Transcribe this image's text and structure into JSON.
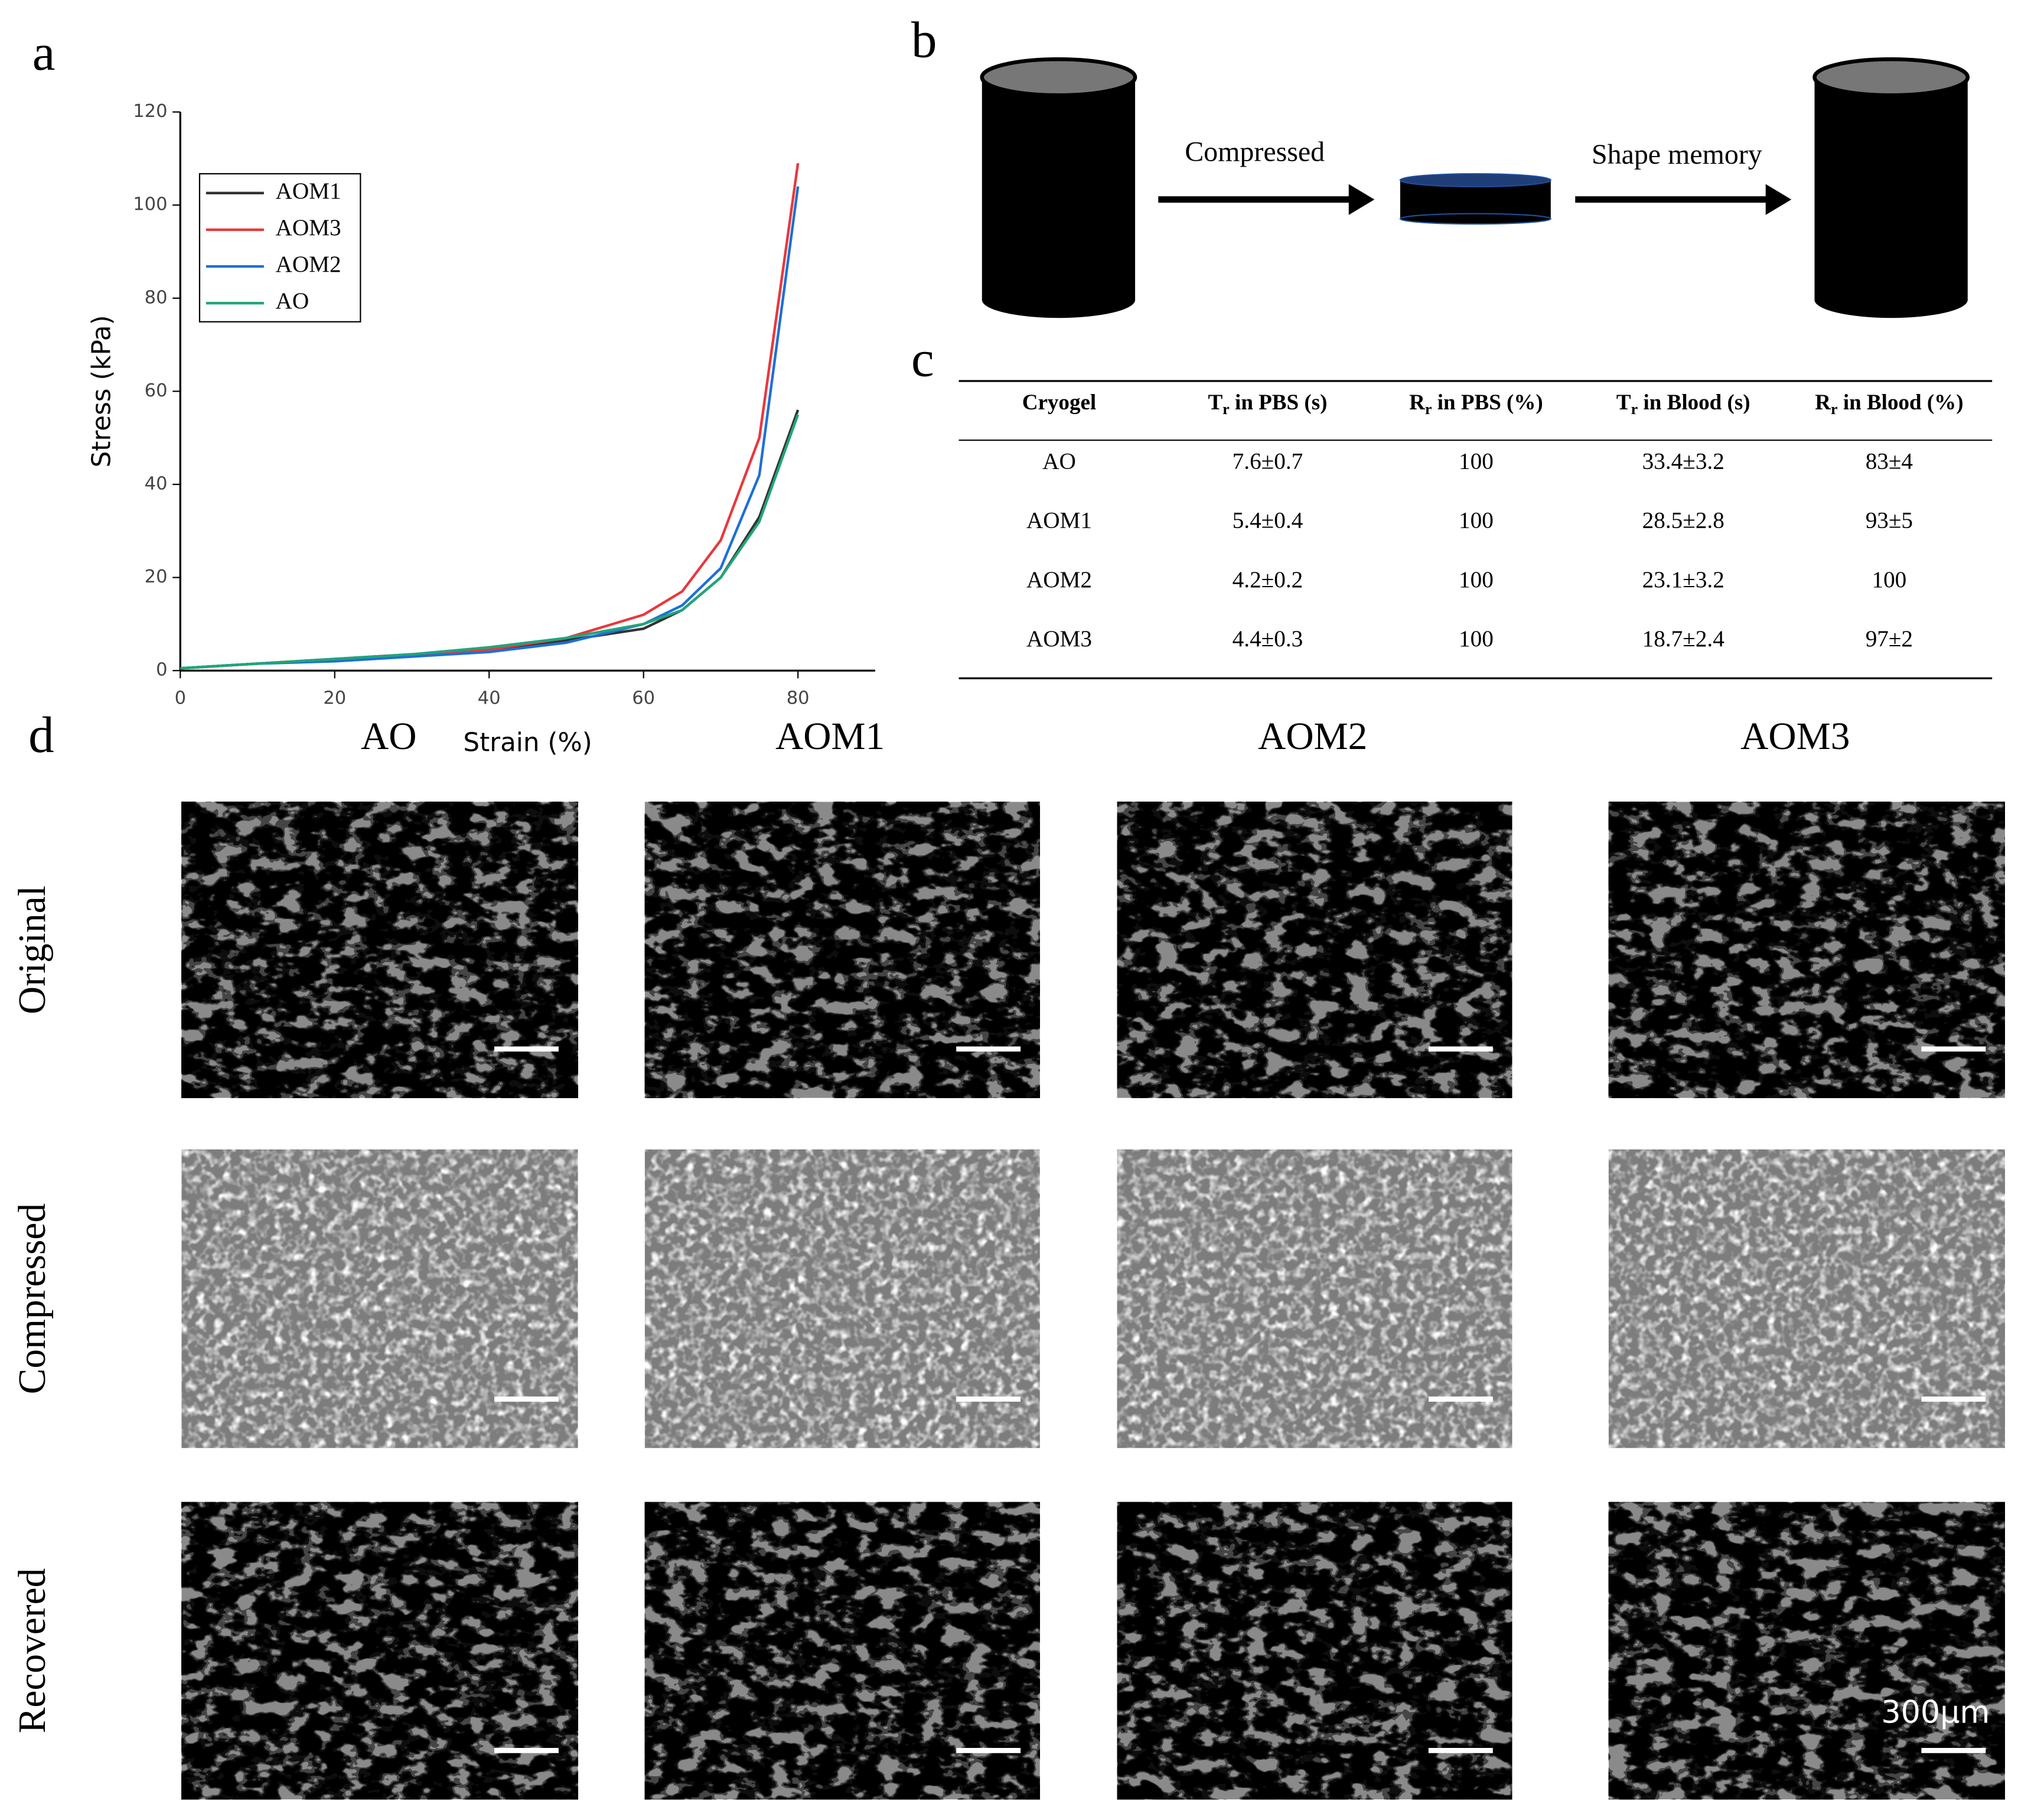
{
  "panel_labels": [
    "a",
    "b",
    "c",
    "d"
  ],
  "chart_data": {
    "type": "line",
    "xlabel": "Strain (%)",
    "ylabel": "Stress (kPa)",
    "x": [
      0,
      10,
      20,
      30,
      40,
      50,
      60,
      65,
      70,
      75,
      80
    ],
    "series": [
      {
        "name": "AOM1",
        "color": "#333333",
        "values": [
          0.5,
          1.5,
          2.5,
          3.5,
          4.5,
          6.5,
          9,
          13,
          20,
          33,
          56
        ]
      },
      {
        "name": "AOM3",
        "color": "#e8383d",
        "values": [
          0.5,
          1.5,
          2.5,
          3.5,
          4.5,
          7,
          12,
          17,
          28,
          50,
          109
        ]
      },
      {
        "name": "AOM2",
        "color": "#1f6fd6",
        "values": [
          0.5,
          1.5,
          2,
          3,
          4,
          6,
          10,
          14,
          22,
          42,
          104
        ]
      },
      {
        "name": "AO",
        "color": "#1fa67a",
        "values": [
          0.5,
          1.5,
          2.5,
          3.5,
          5,
          7,
          10,
          13,
          20,
          32,
          55
        ]
      }
    ],
    "xlim": [
      0,
      90
    ],
    "xticks": [
      0,
      20,
      40,
      60,
      80
    ],
    "ylim": [
      0,
      120
    ],
    "yticks": [
      0,
      20,
      40,
      60,
      80,
      100,
      120
    ],
    "legend": "upper left"
  },
  "diagram": {
    "arrow1": "Compressed",
    "arrow2": "Shape memory"
  },
  "table": {
    "header": [
      {
        "main": "Cryogel"
      },
      {
        "main": "T",
        "sub": "r",
        "rest": " in PBS (s)"
      },
      {
        "main": "R",
        "sub": "r",
        "rest": " in PBS (%)"
      },
      {
        "main": "T",
        "sub": "r",
        "rest": " in Blood (s)"
      },
      {
        "main": "R",
        "sub": "r",
        "rest": " in Blood (%)"
      }
    ],
    "rows": [
      [
        "AO",
        "7.6±0.7",
        "100",
        "33.4±3.2",
        "83±4"
      ],
      [
        "AOM1",
        "5.4±0.4",
        "100",
        "28.5±2.8",
        "93±5"
      ],
      [
        "AOM2",
        "4.2±0.2",
        "100",
        "23.1±3.2",
        "100"
      ],
      [
        "AOM3",
        "4.4±0.3",
        "100",
        "18.7±2.4",
        "97±2"
      ]
    ]
  },
  "sem": {
    "columns": [
      "AO",
      "AOM1",
      "AOM2",
      "AOM3"
    ],
    "rows": [
      "Original",
      "Compressed",
      "Recovered"
    ],
    "scale_bar": "300μm"
  }
}
